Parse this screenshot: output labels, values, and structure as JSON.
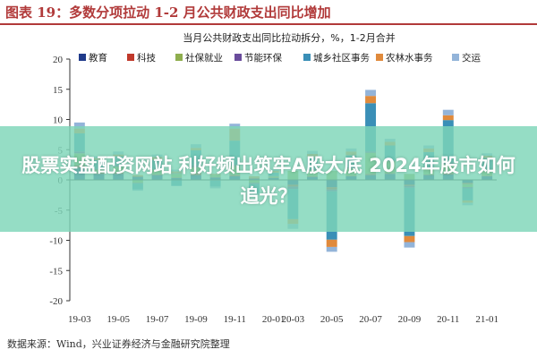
{
  "header": {
    "title": "图表 19：多数分项拉动 1-2 月公共财政支出同比增加"
  },
  "source": "数据来源：Wind，兴业证券经济与金融研究院整理",
  "banner": {
    "text": "股票实盘配资网站 利好频出筑牢A股大底 2024年股市如何追光？"
  },
  "chart_data": {
    "type": "bar",
    "stacked": true,
    "title": "当月公共财政支出同比拉动拆分，%，1-2月合并",
    "ylim": [
      -20,
      20
    ],
    "yticks": [
      -20,
      -15,
      -10,
      -5,
      0,
      5,
      10,
      15,
      20
    ],
    "grid": false,
    "legend_position": "top",
    "x_tick_labels": [
      "19-03",
      "19-05",
      "19-07",
      "19-09",
      "19-11",
      "20-01",
      "20-03",
      "20-05",
      "20-07",
      "20-09",
      "20-11",
      "21-01"
    ],
    "categories": [
      "19-03",
      "19-04",
      "19-05",
      "19-06",
      "19-07",
      "19-08",
      "19-09",
      "19-10",
      "19-11",
      "19-12",
      "20-01",
      "20-03",
      "20-04",
      "20-05",
      "20-06",
      "20-07",
      "20-08",
      "20-09",
      "20-10",
      "20-11",
      "20-12",
      "21-01"
    ],
    "series": [
      {
        "name": "教育",
        "color": "#1f3a8a",
        "values": [
          2.0,
          1.0,
          1.0,
          0.5,
          0.8,
          0.3,
          0.8,
          0.4,
          0.6,
          0.2,
          0.3,
          -0.8,
          0.5,
          -1.2,
          0.6,
          0.8,
          1.0,
          -0.8,
          0.8,
          0.9,
          -0.5,
          0.6
        ]
      },
      {
        "name": "科技",
        "color": "#c0392b",
        "values": [
          0.4,
          0.2,
          0.2,
          0.1,
          0.1,
          0.1,
          0.3,
          0.1,
          0.2,
          0.1,
          0.1,
          -0.3,
          0.1,
          -0.4,
          0.1,
          0.2,
          0.1,
          -0.2,
          0.1,
          0.2,
          -0.2,
          0.1
        ]
      },
      {
        "name": "社保就业",
        "color": "#8fae4e",
        "values": [
          2.0,
          0.5,
          1.0,
          -0.5,
          0.8,
          0.6,
          1.0,
          0.3,
          1.5,
          -0.5,
          0.2,
          1.5,
          1.0,
          1.5,
          1.2,
          3.5,
          2.0,
          1.0,
          1.0,
          1.5,
          -0.5,
          0.8
        ]
      },
      {
        "name": "节能环保",
        "color": "#6a4c9c",
        "values": [
          0.3,
          0.1,
          0.2,
          -0.1,
          0.1,
          0.1,
          0.3,
          -0.1,
          0.2,
          -0.2,
          0.1,
          -0.4,
          0.2,
          -0.3,
          0.2,
          0.2,
          0.1,
          -0.3,
          0.2,
          0.3,
          -0.2,
          0.1
        ]
      },
      {
        "name": "城乡社区事务",
        "color": "#3a8fb7",
        "values": [
          3.0,
          1.5,
          1.5,
          -1.0,
          1.5,
          -1.0,
          2.5,
          -1.0,
          4.0,
          -1.5,
          0.5,
          -5.0,
          2.0,
          -8.0,
          2.0,
          8.0,
          2.5,
          -8.0,
          2.5,
          7.0,
          -2.0,
          2.0
        ]
      },
      {
        "name": "农林水事务",
        "color": "#e08a3c",
        "values": [
          0.8,
          0.3,
          0.3,
          0.2,
          0.5,
          0.3,
          0.4,
          0.2,
          2.0,
          0.3,
          0.3,
          -0.8,
          0.5,
          -1.2,
          0.6,
          1.2,
          0.6,
          -1.0,
          0.6,
          0.8,
          -0.4,
          0.4
        ]
      },
      {
        "name": "交运",
        "color": "#93b4d9",
        "values": [
          1.0,
          0.3,
          0.5,
          -0.2,
          0.4,
          0.3,
          0.6,
          -0.3,
          0.8,
          -0.3,
          0.2,
          -0.8,
          0.5,
          -0.8,
          0.5,
          1.0,
          0.5,
          -0.9,
          0.5,
          0.9,
          -0.4,
          0.4
        ]
      }
    ]
  }
}
